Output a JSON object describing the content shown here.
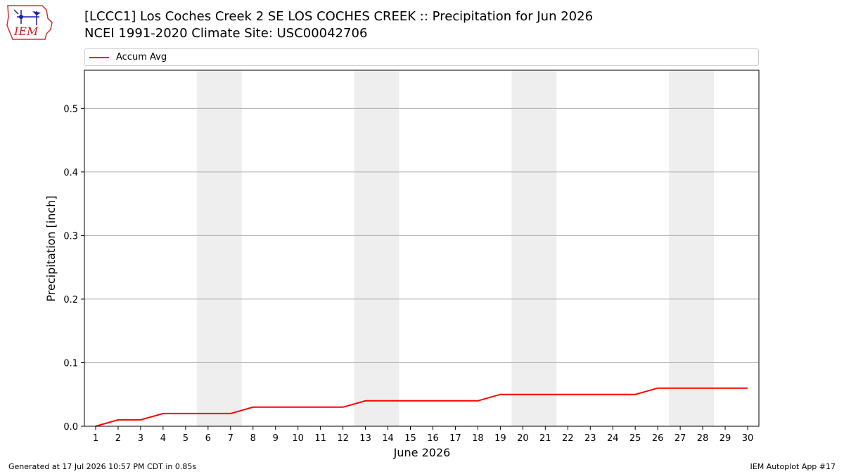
{
  "logo": {
    "text": "IEM"
  },
  "header": {
    "title_line1": "[LCCC1] Los Coches Creek 2 SE LOS COCHES CREEK :: Precipitation for Jun 2026",
    "title_line2": "NCEI 1991-2020 Climate Site: USC00042706"
  },
  "footer": {
    "generated": "Generated at 17 Jul 2026 10:57 PM CDT in 0.85s",
    "app": "IEM Autoplot App #17"
  },
  "colors": {
    "series": "#ff0000",
    "weekend_band": "#eeeeee",
    "grid": "#b0b0b0"
  },
  "chart_data": {
    "type": "line",
    "xlabel": "June 2026",
    "ylabel": "Precipitation [inch]",
    "x": [
      1,
      2,
      3,
      4,
      5,
      6,
      7,
      8,
      9,
      10,
      11,
      12,
      13,
      14,
      15,
      16,
      17,
      18,
      19,
      20,
      21,
      22,
      23,
      24,
      25,
      26,
      27,
      28,
      29,
      30
    ],
    "xlim": [
      0.5,
      30.5
    ],
    "ylim": [
      0,
      0.56
    ],
    "yticks": [
      0.0,
      0.1,
      0.2,
      0.3,
      0.4,
      0.5
    ],
    "ytick_labels": [
      "0.0",
      "0.1",
      "0.2",
      "0.3",
      "0.4",
      "0.5"
    ],
    "grid": "horizontal",
    "legend": "top",
    "shaded_days": [
      [
        6,
        7
      ],
      [
        13,
        14
      ],
      [
        20,
        21
      ],
      [
        27,
        28
      ]
    ],
    "series": [
      {
        "name": "Accum Avg",
        "color": "#ff0000",
        "values": [
          0.0,
          0.01,
          0.01,
          0.02,
          0.02,
          0.02,
          0.02,
          0.03,
          0.03,
          0.03,
          0.03,
          0.03,
          0.04,
          0.04,
          0.04,
          0.04,
          0.04,
          0.04,
          0.05,
          0.05,
          0.05,
          0.05,
          0.05,
          0.05,
          0.05,
          0.06,
          0.06,
          0.06,
          0.06,
          0.06
        ]
      }
    ]
  }
}
